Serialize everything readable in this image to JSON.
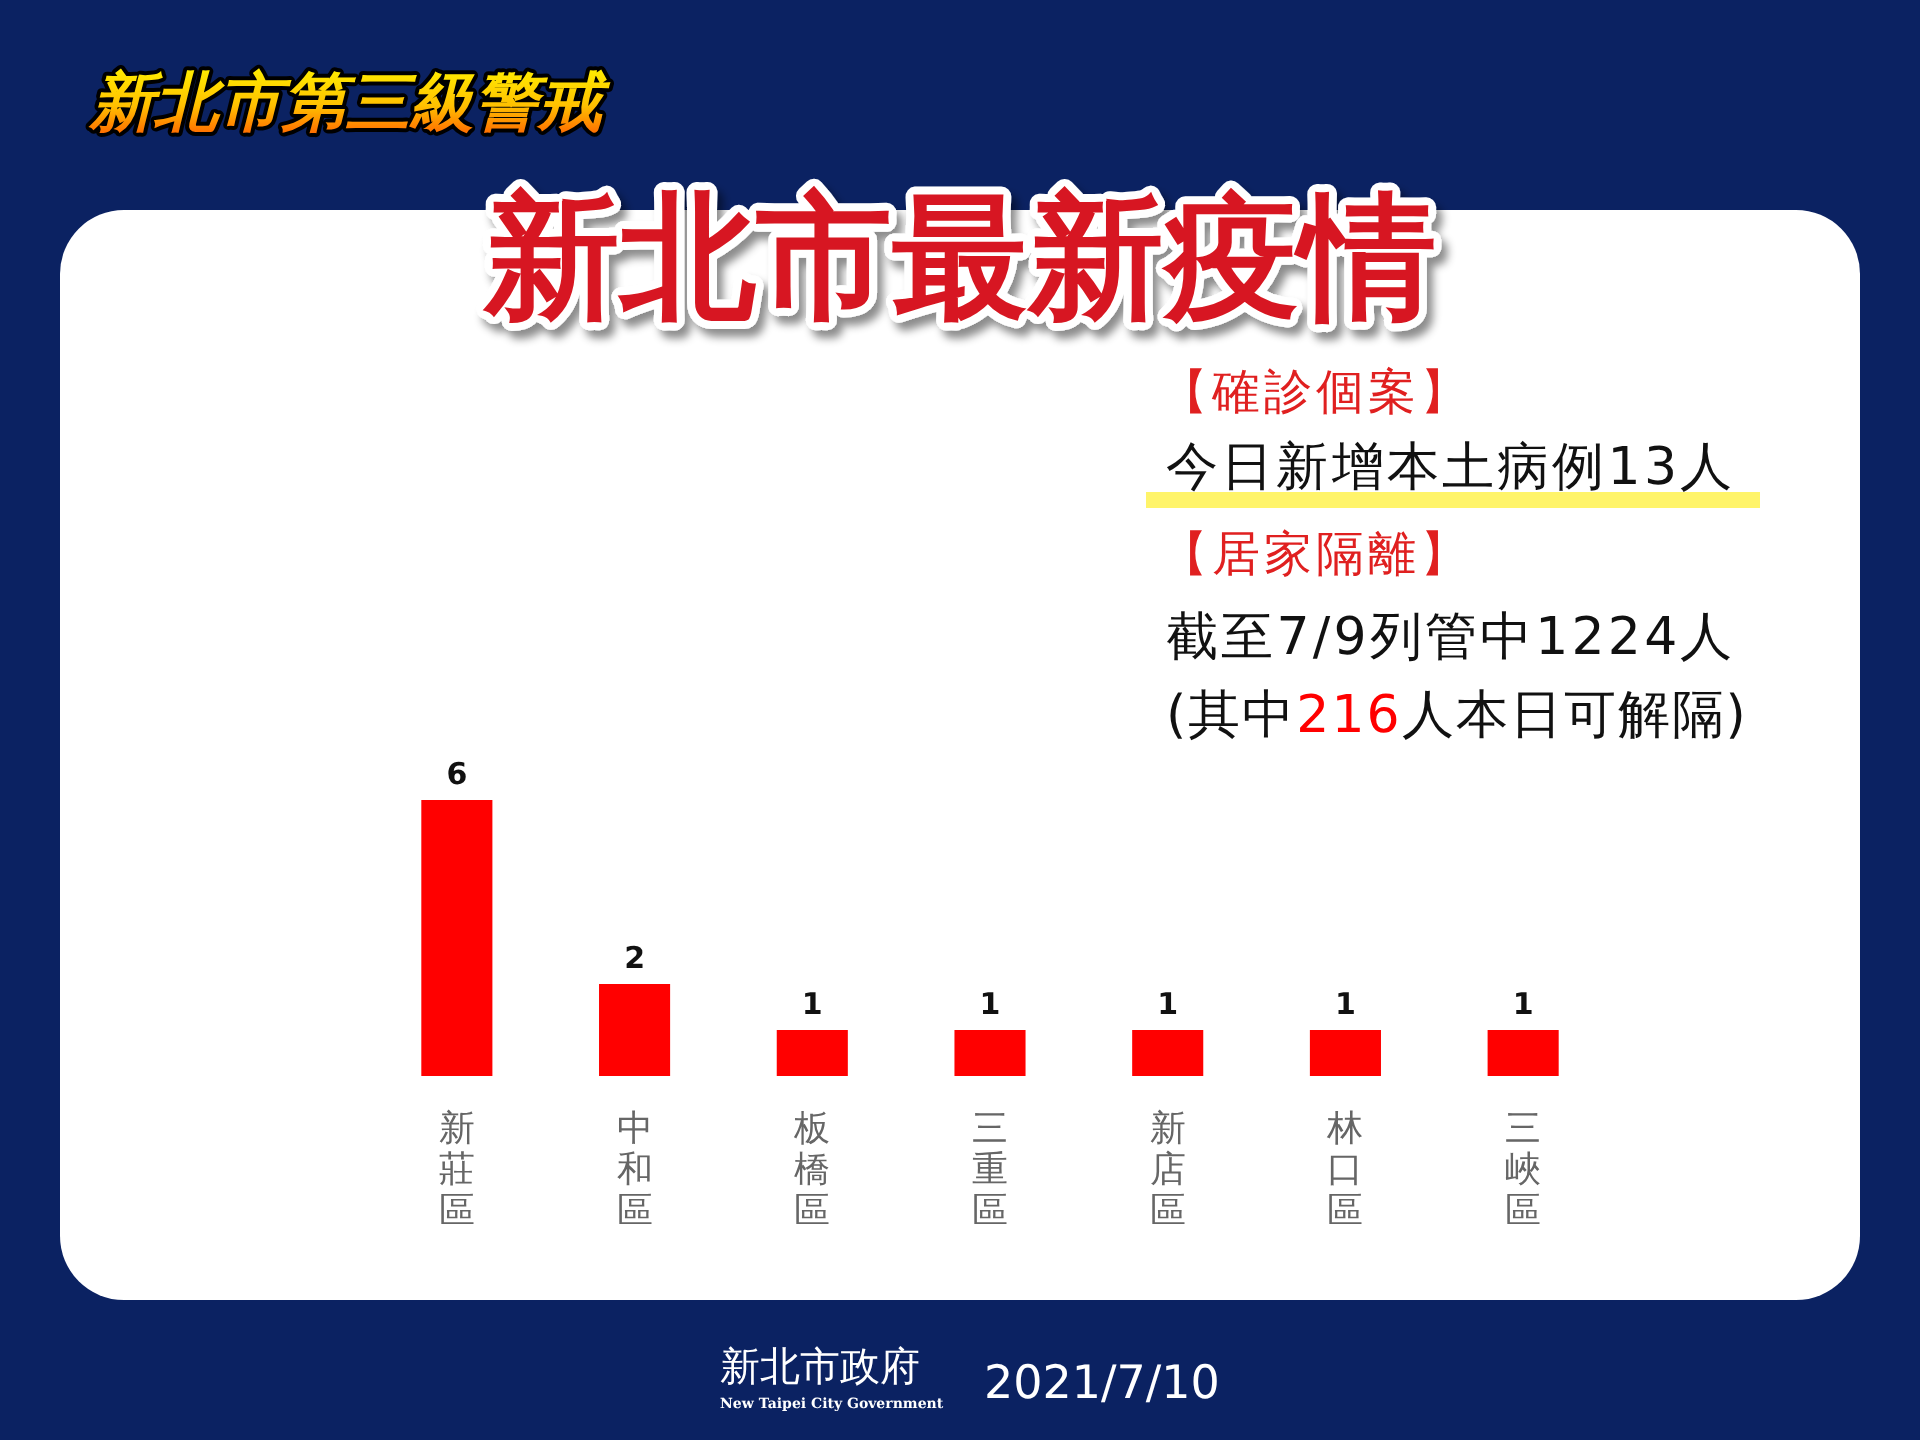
{
  "chart_data": {
    "type": "bar",
    "subtitle": "新北市第三級警戒",
    "title": "新北市最新疫情",
    "categories": [
      "新莊區",
      "中和區",
      "板橋區",
      "三重區",
      "新店區",
      "林口區",
      "三峽區"
    ],
    "values": [
      6,
      2,
      1,
      1,
      1,
      1,
      1
    ],
    "color": "#ff0000",
    "data_labels": true,
    "annotations": [
      "【確診個案】",
      "今日新增本土病例13人",
      "【居家隔離】",
      "截至7/9列管中1224人",
      "(其中216人本日可解隔)",
      "新北市政府",
      "New Taipei City Government",
      "2021/7/10"
    ]
  }
}
